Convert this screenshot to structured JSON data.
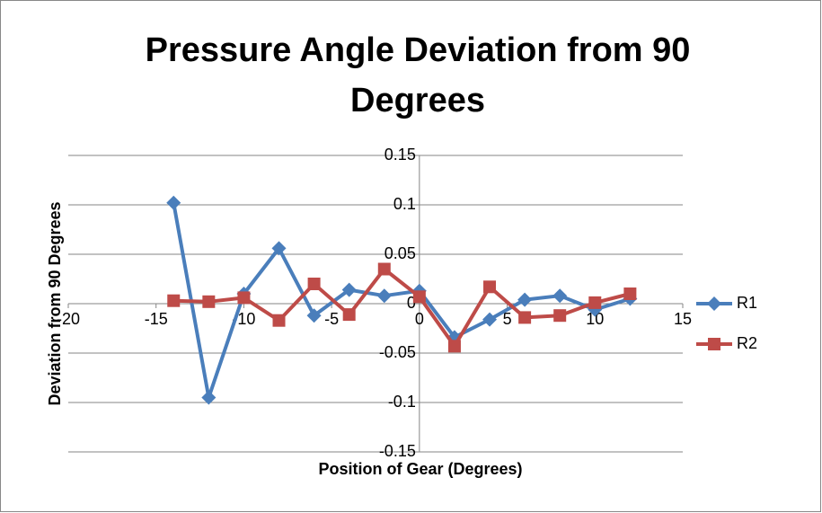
{
  "chart_data": {
    "type": "scatter-line",
    "title": "Pressure Angle Deviation from 90 Degrees",
    "x_label": "Position of Gear (Degrees)",
    "y_label": "Deviation from 90 Degrees",
    "x": [
      -14,
      -12,
      -10,
      -8,
      -6,
      -4,
      -2,
      0,
      2,
      4,
      6,
      8,
      10,
      12
    ],
    "series": [
      {
        "name": "R1",
        "color": "#4a7ebb",
        "marker": "diamond",
        "values": [
          0.102,
          -0.095,
          0.01,
          0.056,
          -0.012,
          0.014,
          0.008,
          0.013,
          -0.034,
          -0.016,
          0.004,
          0.008,
          -0.006,
          0.005
        ]
      },
      {
        "name": "R2",
        "color": "#be4b48",
        "marker": "square",
        "values": [
          0.003,
          0.002,
          0.006,
          -0.017,
          0.02,
          -0.011,
          0.035,
          0.007,
          -0.043,
          0.017,
          -0.014,
          -0.012,
          0.001,
          0.01
        ]
      }
    ],
    "xlim": [
      -20,
      15
    ],
    "xticks": [
      -20,
      -15,
      -10,
      -5,
      0,
      5,
      10,
      15
    ],
    "ylim": [
      -0.15,
      0.15
    ],
    "yticks": [
      -0.15,
      -0.1,
      -0.05,
      0,
      0.05,
      0.1,
      0.15
    ],
    "grid": true,
    "legend": "right"
  }
}
